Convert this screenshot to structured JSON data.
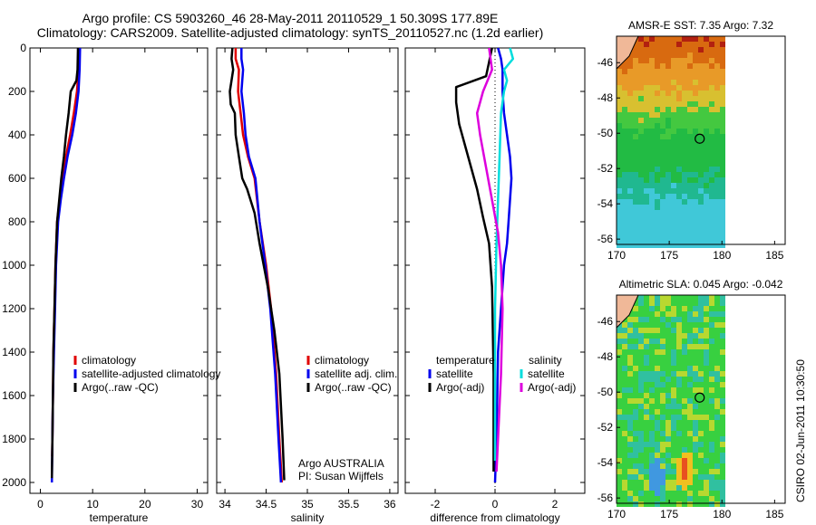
{
  "titles": {
    "line1": "Argo profile: CS 5903260_46 28-May-2011 20110529_1 50.309S 177.89E",
    "line2": "Climatology: CARS2009. Satellite-adjusted climatology: synTS_20110527.nc (1.2d earlier)"
  },
  "stamp": "CSIRO 02-Jun-2011 10:30:50",
  "chart_data": [
    {
      "type": "line",
      "name": "temperature",
      "xlabel": "temperature",
      "ylabel": "",
      "xlim": [
        -2,
        32
      ],
      "ylim": [
        2050,
        0
      ],
      "xticks": [
        0,
        10,
        20,
        30
      ],
      "yticks": [
        0,
        200,
        400,
        600,
        800,
        1000,
        1200,
        1400,
        1600,
        1800,
        2000
      ],
      "legend": {
        "position": "lower-middle",
        "entries": [
          "climatology",
          "satellite-adjusted climatology",
          "Argo(..raw -QC)"
        ]
      },
      "series": [
        {
          "name": "climatology",
          "color": "#e00000",
          "x": [
            7.3,
            7.3,
            7.0,
            6.4,
            5.7,
            4.9,
            4.3,
            3.7,
            3.2,
            2.9,
            2.7,
            2.5,
            2.4,
            2.3,
            2.25
          ],
          "y": [
            0,
            100,
            200,
            300,
            400,
            500,
            600,
            700,
            800,
            1000,
            1200,
            1400,
            1600,
            1800,
            1880
          ]
        },
        {
          "name": "satellite-adjusted climatology",
          "color": "#0000ee",
          "x": [
            7.6,
            7.5,
            7.3,
            6.8,
            6.1,
            5.2,
            4.5,
            3.9,
            3.4,
            3.0,
            2.8,
            2.6,
            2.4,
            2.3,
            2.2
          ],
          "y": [
            0,
            100,
            200,
            300,
            400,
            500,
            600,
            700,
            800,
            1000,
            1200,
            1400,
            1600,
            1800,
            2000
          ]
        },
        {
          "name": "Argo(..raw -QC)",
          "color": "#000000",
          "x": [
            7.2,
            7.1,
            6.9,
            5.8,
            5.4,
            4.9,
            4.5,
            4.0,
            3.6,
            3.2,
            2.9,
            2.7,
            2.5,
            2.4,
            2.3,
            2.2
          ],
          "y": [
            0,
            100,
            150,
            200,
            300,
            400,
            500,
            600,
            700,
            800,
            1000,
            1200,
            1400,
            1600,
            1800,
            1980
          ]
        }
      ]
    },
    {
      "type": "line",
      "name": "salinity",
      "xlabel": "salinity",
      "xlim": [
        33.9,
        36.1
      ],
      "ylim": [
        2050,
        0
      ],
      "xticks": [
        34,
        34.5,
        35,
        35.5,
        36
      ],
      "yticks": [
        0,
        200,
        400,
        600,
        800,
        1000,
        1200,
        1400,
        1600,
        1800,
        2000
      ],
      "legend": {
        "position": "lower-right",
        "entries": [
          "climatology",
          "satellite adj. clim.",
          "Argo(..raw -QC)"
        ]
      },
      "annotation": [
        "Argo AUSTRALIA",
        "PI: Susan Wijffels"
      ],
      "series": [
        {
          "name": "climatology",
          "color": "#e00000",
          "x": [
            34.13,
            34.13,
            34.17,
            34.16,
            34.19,
            34.22,
            34.28,
            34.36,
            34.42,
            34.5,
            34.56,
            34.62,
            34.66,
            34.69
          ],
          "y": [
            0,
            50,
            100,
            200,
            300,
            400,
            500,
            600,
            800,
            1000,
            1200,
            1500,
            1800,
            2000
          ]
        },
        {
          "name": "satellite adj. clim.",
          "color": "#0000ee",
          "x": [
            34.2,
            34.2,
            34.22,
            34.2,
            34.23,
            34.25,
            34.29,
            34.37,
            34.42,
            34.49,
            34.55,
            34.61,
            34.65,
            34.68
          ],
          "y": [
            0,
            50,
            100,
            200,
            300,
            400,
            500,
            600,
            800,
            1000,
            1200,
            1500,
            1800,
            2000
          ]
        },
        {
          "name": "Argo(..raw -QC)",
          "color": "#000000",
          "x": [
            34.09,
            34.08,
            34.1,
            34.06,
            34.07,
            34.12,
            34.13,
            34.17,
            34.21,
            34.27,
            34.36,
            34.42,
            34.52,
            34.6,
            34.66,
            34.7,
            34.72
          ],
          "y": [
            0,
            50,
            100,
            200,
            260,
            300,
            400,
            500,
            600,
            650,
            760,
            900,
            1100,
            1300,
            1500,
            1800,
            1990
          ]
        }
      ]
    },
    {
      "type": "line",
      "name": "difference from climatology",
      "xlabel": "difference from climatology",
      "xlim": [
        -3,
        3
      ],
      "ylim": [
        2050,
        0
      ],
      "xticks": [
        -2,
        0,
        2
      ],
      "yticks": [
        0,
        200,
        400,
        600,
        800,
        1000,
        1200,
        1400,
        1600,
        1800,
        2000
      ],
      "legend": {
        "position": "lower-middle",
        "headers": [
          "temperature",
          "salinity"
        ],
        "entries": [
          "satellite",
          "Argo(-adj)",
          "satellite",
          "Argo(-adj)"
        ]
      },
      "series": [
        {
          "name": "temperature satellite",
          "color": "#0000ee",
          "x": [
            0.1,
            0.2,
            0.25,
            0.25,
            0.3,
            0.4,
            0.5,
            0.55,
            0.5,
            0.45,
            0.4,
            0.3,
            0.1,
            0.05,
            0.0
          ],
          "y": [
            0,
            50,
            100,
            200,
            300,
            400,
            500,
            600,
            700,
            800,
            900,
            1000,
            1400,
            1800,
            2000
          ]
        },
        {
          "name": "temperature Argo(-adj)",
          "color": "#000000",
          "x": [
            -0.1,
            -0.3,
            -1.3,
            -1.3,
            -1.2,
            -1.0,
            -0.8,
            -0.6,
            -0.4,
            -0.2,
            -0.1,
            -0.05,
            -0.05
          ],
          "y": [
            0,
            130,
            180,
            250,
            350,
            450,
            550,
            650,
            780,
            900,
            1100,
            1500,
            1950
          ]
        },
        {
          "name": "salinity satellite",
          "color": "#00dddd",
          "x": [
            0.5,
            0.6,
            0.3,
            0.4,
            0.3,
            0.2,
            0.15,
            0.1,
            0.05,
            0.0,
            0.0,
            0.0
          ],
          "y": [
            0,
            50,
            100,
            150,
            200,
            300,
            500,
            700,
            900,
            1200,
            1600,
            1900
          ]
        },
        {
          "name": "salinity Argo(-adj)",
          "color": "#dd00dd",
          "x": [
            -0.2,
            -0.1,
            -0.4,
            -0.6,
            -0.5,
            -0.3,
            -0.1,
            0.1,
            0.2,
            0.25,
            0.2,
            0.1,
            0.05
          ],
          "y": [
            0,
            100,
            200,
            300,
            400,
            550,
            700,
            850,
            1000,
            1200,
            1500,
            1800,
            1950
          ]
        }
      ]
    },
    {
      "type": "heatmap",
      "name": "AMSR-E SST",
      "title": "AMSR-E SST: 7.35 Argo: 7.32",
      "xlim": [
        170,
        186
      ],
      "ylim": [
        -56.3,
        -44.5
      ],
      "xticks": [
        170,
        175,
        180,
        185
      ],
      "yticks": [
        -46,
        -48,
        -50,
        -52,
        -54,
        -56
      ],
      "marker": {
        "lon": 177.89,
        "lat": -50.309
      }
    },
    {
      "type": "heatmap",
      "name": "Altimetric SLA",
      "title": "Altimetric SLA: 0.045 Argo: -0.042",
      "xlim": [
        170,
        186
      ],
      "ylim": [
        -56.3,
        -44.5
      ],
      "xticks": [
        170,
        175,
        180,
        185
      ],
      "yticks": [
        -46,
        -48,
        -50,
        -52,
        -54,
        -56
      ],
      "marker": {
        "lon": 177.89,
        "lat": -50.309
      }
    }
  ]
}
